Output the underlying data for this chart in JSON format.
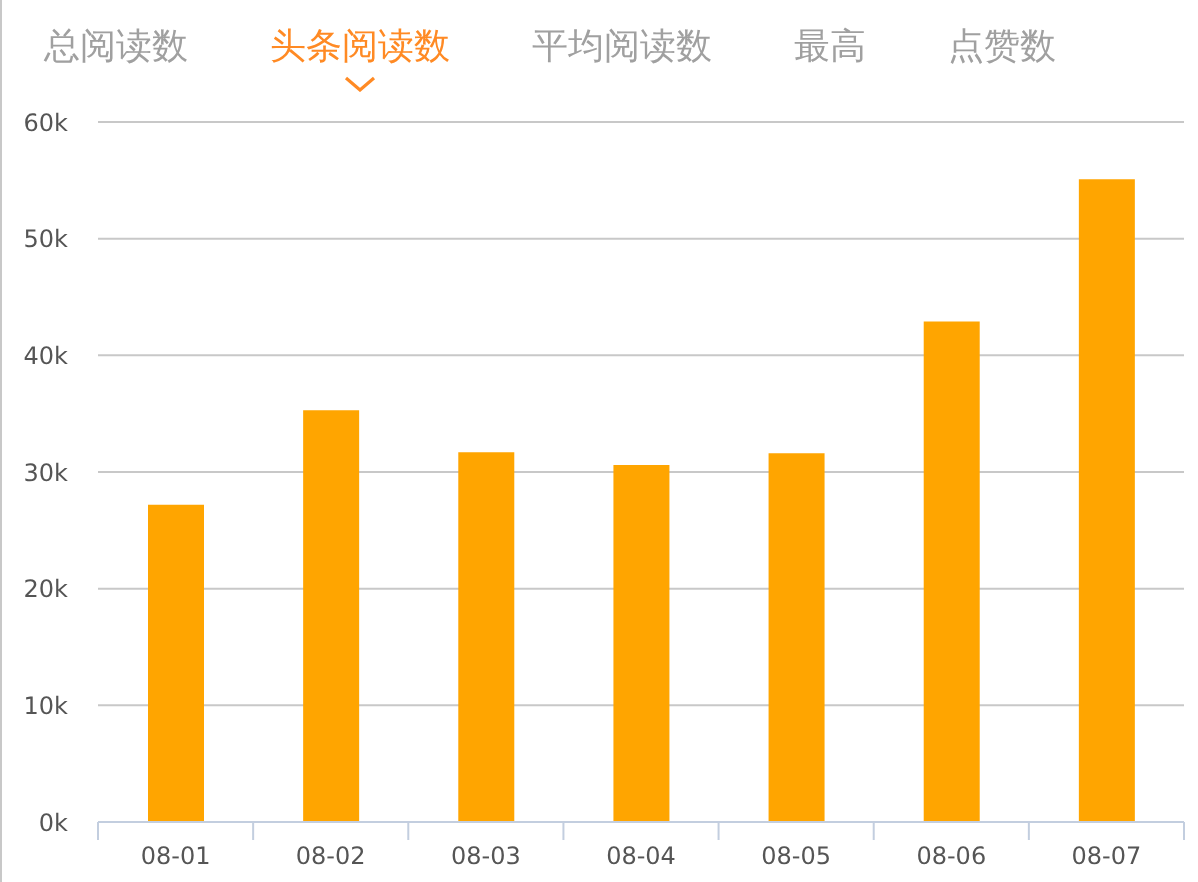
{
  "chart_data": {
    "type": "bar",
    "title": "头条阅读数",
    "annotations": [
      "总阅读数",
      "平均阅读数",
      "最高",
      "点赞数"
    ],
    "categories": [
      "08-01",
      "08-02",
      "08-03",
      "08-04",
      "08-05",
      "08-06",
      "08-07"
    ],
    "values": [
      27200,
      35300,
      31700,
      30600,
      31600,
      42900,
      55100
    ],
    "color": "#ffa500",
    "ylim": [
      0,
      60000
    ],
    "yticks": [
      {
        "value": 0,
        "label": "0k"
      },
      {
        "value": 10000,
        "label": "10k"
      },
      {
        "value": 20000,
        "label": "20k"
      },
      {
        "value": 30000,
        "label": "30k"
      },
      {
        "value": 40000,
        "label": "40k"
      },
      {
        "value": 50000,
        "label": "50k"
      },
      {
        "value": 60000,
        "label": "60k"
      }
    ],
    "grid": "y"
  }
}
